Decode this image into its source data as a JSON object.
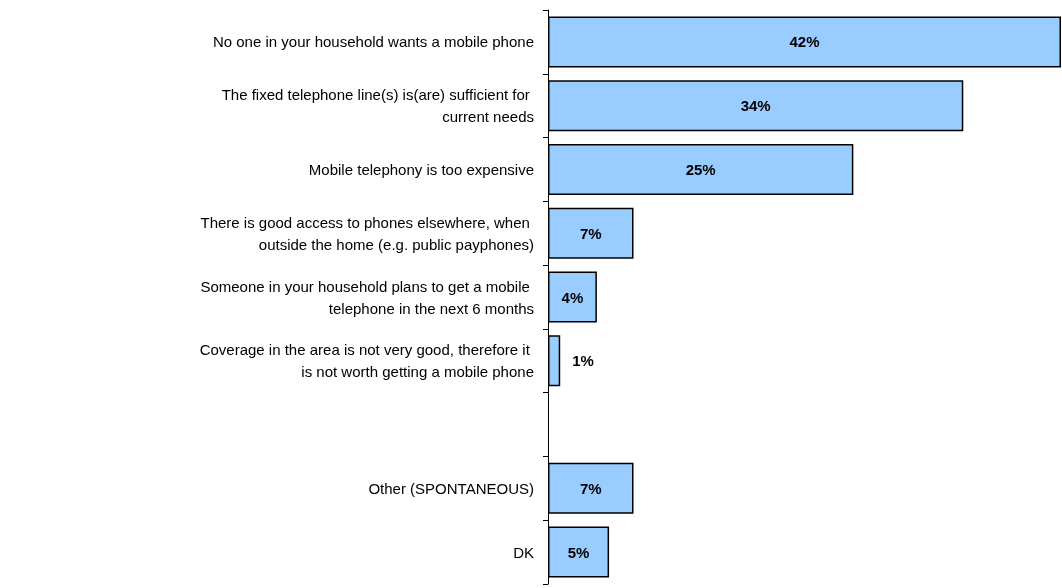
{
  "chart_data": {
    "type": "bar",
    "orientation": "horizontal",
    "categories": [
      "No one in your household wants a mobile phone",
      "The fixed telephone line(s) is(are) sufficient for current needs",
      "Mobile telephony is too expensive",
      "There is good access to phones elsewhere, when outside the home (e.g. public payphones)",
      "Someone in your household plans to get a mobile telephone in the next 6 months",
      "Coverage in the area is not very good, therefore it is not worth getting a mobile phone",
      null,
      "Other (SPONTANEOUS)",
      "DK"
    ],
    "values": [
      42,
      34,
      25,
      7,
      4,
      1,
      null,
      7,
      5
    ],
    "value_labels": [
      "42%",
      "34%",
      "25%",
      "7%",
      "4%",
      "1%",
      null,
      "7%",
      "5%"
    ],
    "color": "#99ccff"
  }
}
